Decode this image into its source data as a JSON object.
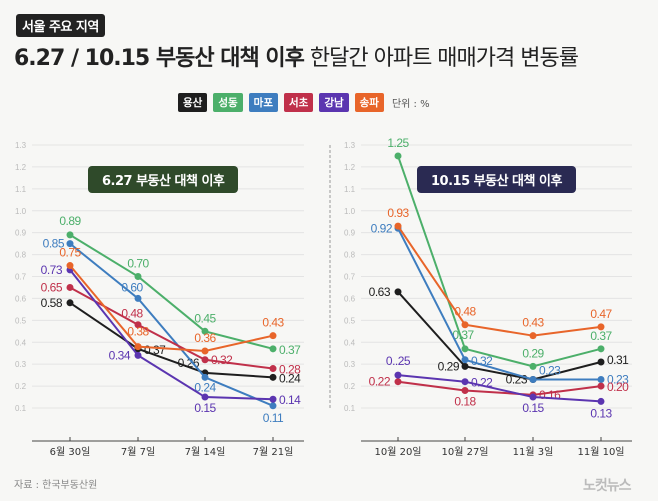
{
  "header": {
    "tag": "서울 주요 지역",
    "title_bold": "6.27 / 10.15 부동산 대책 이후",
    "title_rest": " 한달간 아파트 매매가격 변동률"
  },
  "legend": {
    "items": [
      {
        "label": "용산",
        "color": "#1e1e1e"
      },
      {
        "label": "성동",
        "color": "#4caf6a"
      },
      {
        "label": "마포",
        "color": "#3e7dbf"
      },
      {
        "label": "서초",
        "color": "#c0304a"
      },
      {
        "label": "강남",
        "color": "#5b35b0"
      },
      {
        "label": "송파",
        "color": "#e8652a"
      }
    ],
    "unit": "단위 : %"
  },
  "source": "자료 : 한국부동산원",
  "logo": "노컷뉴스",
  "chart_data": [
    {
      "type": "line",
      "title": "6.27 부동산 대책 이후",
      "title_bg": "#2f4a2a",
      "categories": [
        "6월 30일",
        "7월 7일",
        "7월 14일",
        "7월 21일"
      ],
      "ylim": [
        0,
        1.3
      ],
      "yticks": [
        "1.3",
        "1.2",
        "1.1",
        "1.0",
        "0.9",
        "0.8",
        "0.7",
        "0.6",
        "0.5",
        "0.4",
        "0.3",
        "0.2",
        "0.1"
      ],
      "ytick_values": [
        1.3,
        1.2,
        1.1,
        1.0,
        0.9,
        0.8,
        0.7,
        0.6,
        0.5,
        0.4,
        0.3,
        0.2,
        0.1
      ],
      "grid": true,
      "series": [
        {
          "name": "용산",
          "color": "#1e1e1e",
          "values": [
            0.58,
            0.37,
            0.26,
            0.24
          ],
          "labels": [
            "0.58",
            "0.37",
            "0.26",
            "0.24"
          ]
        },
        {
          "name": "성동",
          "color": "#4caf6a",
          "values": [
            0.89,
            0.7,
            0.45,
            0.37
          ],
          "labels": [
            "0.89",
            "0.70",
            "0.45",
            "0.37"
          ]
        },
        {
          "name": "마포",
          "color": "#3e7dbf",
          "values": [
            0.85,
            0.6,
            0.24,
            0.11
          ],
          "labels": [
            "0.85",
            "0.60",
            "0.24",
            "0.11"
          ]
        },
        {
          "name": "서초",
          "color": "#c0304a",
          "values": [
            0.65,
            0.48,
            0.32,
            0.28
          ],
          "labels": [
            "0.65",
            "0.48",
            "0.32",
            "0.28"
          ]
        },
        {
          "name": "강남",
          "color": "#5b35b0",
          "values": [
            0.73,
            0.34,
            0.15,
            0.14
          ],
          "labels": [
            "0.73",
            "0.34",
            "0.15",
            "0.14"
          ]
        },
        {
          "name": "송파",
          "color": "#e8652a",
          "values": [
            0.75,
            0.38,
            0.36,
            0.43
          ],
          "labels": [
            "0.75",
            "0.38",
            "0.36",
            "0.43"
          ]
        }
      ]
    },
    {
      "type": "line",
      "title": "10.15 부동산 대책 이후",
      "title_bg": "#2a2a52",
      "categories": [
        "10월 20일",
        "10월 27일",
        "11월 3일",
        "11월 10일"
      ],
      "ylim": [
        0,
        1.3
      ],
      "yticks": [
        "1.3",
        "1.2",
        "1.1",
        "1.0",
        "0.9",
        "0.8",
        "0.7",
        "0.6",
        "0.5",
        "0.4",
        "0.3",
        "0.2",
        "0.1"
      ],
      "ytick_values": [
        1.3,
        1.2,
        1.1,
        1.0,
        0.9,
        0.8,
        0.7,
        0.6,
        0.5,
        0.4,
        0.3,
        0.2,
        0.1
      ],
      "grid": true,
      "series": [
        {
          "name": "용산",
          "color": "#1e1e1e",
          "values": [
            0.63,
            0.29,
            0.23,
            0.31
          ],
          "labels": [
            "0.63",
            "0.29",
            "0.23",
            "0.31"
          ]
        },
        {
          "name": "성동",
          "color": "#4caf6a",
          "values": [
            1.25,
            0.37,
            0.29,
            0.37
          ],
          "labels": [
            "1.25",
            "0.37",
            "0.29",
            "0.37"
          ]
        },
        {
          "name": "마포",
          "color": "#3e7dbf",
          "values": [
            0.92,
            0.32,
            0.23,
            0.23
          ],
          "labels": [
            "0.92",
            "0.32",
            "0.23",
            "0.23"
          ]
        },
        {
          "name": "서초",
          "color": "#c0304a",
          "values": [
            0.22,
            0.18,
            0.16,
            0.2
          ],
          "labels": [
            "0.22",
            "0.18",
            "0.16",
            "0.20"
          ]
        },
        {
          "name": "강남",
          "color": "#5b35b0",
          "values": [
            0.25,
            0.22,
            0.15,
            0.13
          ],
          "labels": [
            "0..25",
            "0.22",
            "0.15",
            "0.13"
          ]
        },
        {
          "name": "송파",
          "color": "#e8652a",
          "values": [
            0.93,
            0.48,
            0.43,
            0.47
          ],
          "labels": [
            "0.93",
            "0.48",
            "0.43",
            "0.47"
          ]
        }
      ]
    }
  ]
}
